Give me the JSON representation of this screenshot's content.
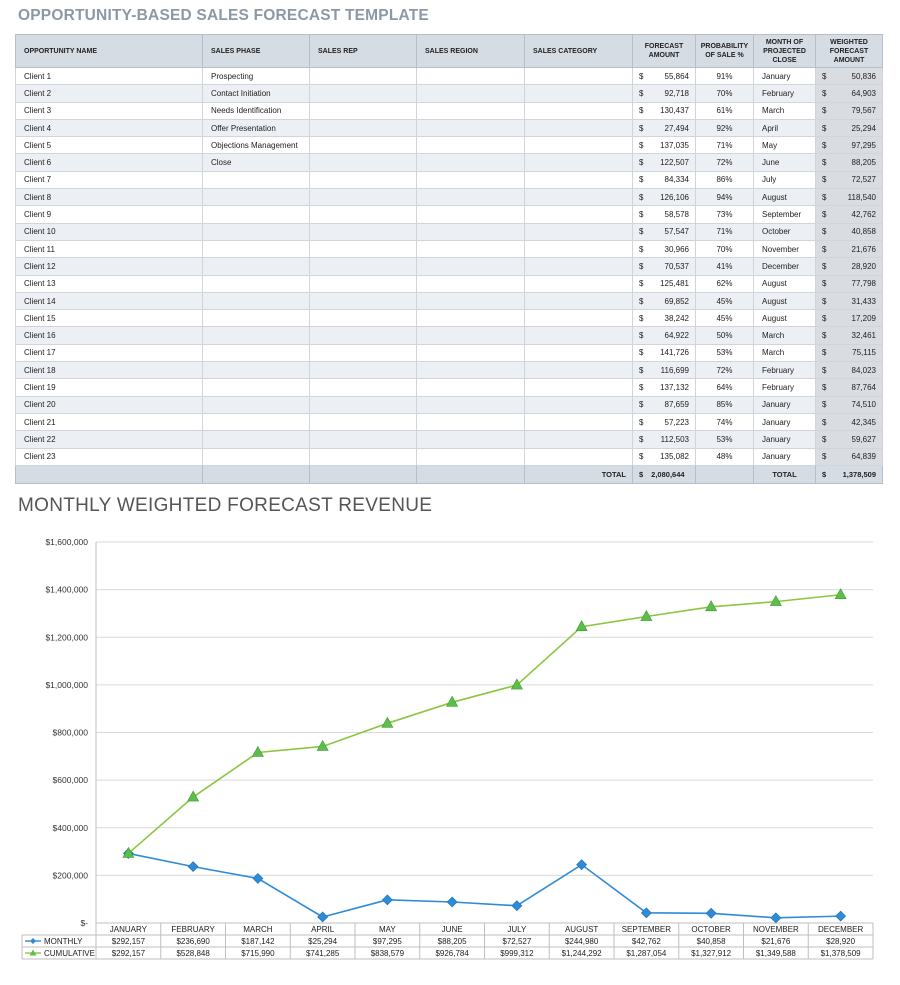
{
  "page_title": "OPPORTUNITY-BASED SALES FORECAST TEMPLATE",
  "table": {
    "headers": {
      "opportunity_name": "OPPORTUNITY NAME",
      "sales_phase": "SALES PHASE",
      "sales_rep": "SALES REP",
      "sales_region": "SALES REGION",
      "sales_category": "SALES CATEGORY",
      "forecast_amount": "FORECAST AMOUNT",
      "probability": "PROBABILITY OF SALE %",
      "month_close": "MONTH OF PROJECTED CLOSE",
      "weighted": "WEIGHTED FORECAST AMOUNT"
    },
    "currency": "$",
    "rows": [
      {
        "name": "Client 1",
        "phase": "Prospecting",
        "rep": "",
        "region": "",
        "category": "",
        "forecast": "55,864",
        "prob": "91%",
        "month": "January",
        "weighted": "50,836"
      },
      {
        "name": "Client 2",
        "phase": "Contact Initiation",
        "rep": "",
        "region": "",
        "category": "",
        "forecast": "92,718",
        "prob": "70%",
        "month": "February",
        "weighted": "64,903"
      },
      {
        "name": "Client 3",
        "phase": "Needs Identification",
        "rep": "",
        "region": "",
        "category": "",
        "forecast": "130,437",
        "prob": "61%",
        "month": "March",
        "weighted": "79,567"
      },
      {
        "name": "Client 4",
        "phase": "Offer Presentation",
        "rep": "",
        "region": "",
        "category": "",
        "forecast": "27,494",
        "prob": "92%",
        "month": "April",
        "weighted": "25,294"
      },
      {
        "name": "Client 5",
        "phase": "Objections Management",
        "rep": "",
        "region": "",
        "category": "",
        "forecast": "137,035",
        "prob": "71%",
        "month": "May",
        "weighted": "97,295"
      },
      {
        "name": "Client 6",
        "phase": "Close",
        "rep": "",
        "region": "",
        "category": "",
        "forecast": "122,507",
        "prob": "72%",
        "month": "June",
        "weighted": "88,205"
      },
      {
        "name": "Client 7",
        "phase": "",
        "rep": "",
        "region": "",
        "category": "",
        "forecast": "84,334",
        "prob": "86%",
        "month": "July",
        "weighted": "72,527"
      },
      {
        "name": "Client 8",
        "phase": "",
        "rep": "",
        "region": "",
        "category": "",
        "forecast": "126,106",
        "prob": "94%",
        "month": "August",
        "weighted": "118,540"
      },
      {
        "name": "Client 9",
        "phase": "",
        "rep": "",
        "region": "",
        "category": "",
        "forecast": "58,578",
        "prob": "73%",
        "month": "September",
        "weighted": "42,762"
      },
      {
        "name": "Client 10",
        "phase": "",
        "rep": "",
        "region": "",
        "category": "",
        "forecast": "57,547",
        "prob": "71%",
        "month": "October",
        "weighted": "40,858"
      },
      {
        "name": "Client 11",
        "phase": "",
        "rep": "",
        "region": "",
        "category": "",
        "forecast": "30,966",
        "prob": "70%",
        "month": "November",
        "weighted": "21,676"
      },
      {
        "name": "Client 12",
        "phase": "",
        "rep": "",
        "region": "",
        "category": "",
        "forecast": "70,537",
        "prob": "41%",
        "month": "December",
        "weighted": "28,920"
      },
      {
        "name": "Client 13",
        "phase": "",
        "rep": "",
        "region": "",
        "category": "",
        "forecast": "125,481",
        "prob": "62%",
        "month": "August",
        "weighted": "77,798"
      },
      {
        "name": "Client 14",
        "phase": "",
        "rep": "",
        "region": "",
        "category": "",
        "forecast": "69,852",
        "prob": "45%",
        "month": "August",
        "weighted": "31,433"
      },
      {
        "name": "Client 15",
        "phase": "",
        "rep": "",
        "region": "",
        "category": "",
        "forecast": "38,242",
        "prob": "45%",
        "month": "August",
        "weighted": "17,209"
      },
      {
        "name": "Client 16",
        "phase": "",
        "rep": "",
        "region": "",
        "category": "",
        "forecast": "64,922",
        "prob": "50%",
        "month": "March",
        "weighted": "32,461"
      },
      {
        "name": "Client 17",
        "phase": "",
        "rep": "",
        "region": "",
        "category": "",
        "forecast": "141,726",
        "prob": "53%",
        "month": "March",
        "weighted": "75,115"
      },
      {
        "name": "Client 18",
        "phase": "",
        "rep": "",
        "region": "",
        "category": "",
        "forecast": "116,699",
        "prob": "72%",
        "month": "February",
        "weighted": "84,023"
      },
      {
        "name": "Client 19",
        "phase": "",
        "rep": "",
        "region": "",
        "category": "",
        "forecast": "137,132",
        "prob": "64%",
        "month": "February",
        "weighted": "87,764"
      },
      {
        "name": "Client 20",
        "phase": "",
        "rep": "",
        "region": "",
        "category": "",
        "forecast": "87,659",
        "prob": "85%",
        "month": "January",
        "weighted": "74,510"
      },
      {
        "name": "Client 21",
        "phase": "",
        "rep": "",
        "region": "",
        "category": "",
        "forecast": "57,223",
        "prob": "74%",
        "month": "January",
        "weighted": "42,345"
      },
      {
        "name": "Client 22",
        "phase": "",
        "rep": "",
        "region": "",
        "category": "",
        "forecast": "112,503",
        "prob": "53%",
        "month": "January",
        "weighted": "59,627"
      },
      {
        "name": "Client 23",
        "phase": "",
        "rep": "",
        "region": "",
        "category": "",
        "forecast": "135,082",
        "prob": "48%",
        "month": "January",
        "weighted": "64,839"
      }
    ],
    "totals": {
      "label_forecast": "TOTAL",
      "forecast": "2,080,644",
      "label_weighted": "TOTAL",
      "weighted": "1,378,509"
    }
  },
  "chart_title": "MONTHLY WEIGHTED FORECAST REVENUE",
  "chart_data": {
    "type": "line",
    "title": "",
    "xlabel": "",
    "ylabel": "",
    "ylim": [
      0,
      1600000
    ],
    "yticks": [
      0,
      200000,
      400000,
      600000,
      800000,
      1000000,
      1200000,
      1400000,
      1600000
    ],
    "ytick_labels": [
      "$-",
      "$200,000",
      "$400,000",
      "$600,000",
      "$800,000",
      "$1,000,000",
      "$1,200,000",
      "$1,400,000",
      "$1,600,000"
    ],
    "grid": true,
    "categories": [
      "JANUARY",
      "FEBRUARY",
      "MARCH",
      "APRIL",
      "MAY",
      "JUNE",
      "JULY",
      "AUGUST",
      "SEPTEMBER",
      "OCTOBER",
      "NOVEMBER",
      "DECEMBER"
    ],
    "series": [
      {
        "name": "MONTHLY",
        "color": "#2e8bd8",
        "marker": "diamond",
        "values": [
          292157,
          236690,
          187142,
          25294,
          97295,
          88205,
          72527,
          244980,
          42762,
          40858,
          21676,
          28920
        ],
        "labels": [
          "$292,157",
          "$236,690",
          "$187,142",
          "$25,294",
          "$97,295",
          "$88,205",
          "$72,527",
          "$244,980",
          "$42,762",
          "$40,858",
          "$21,676",
          "$28,920"
        ]
      },
      {
        "name": "CUMULATIVE",
        "color": "#8cc63f",
        "marker": "triangle",
        "values": [
          292157,
          528848,
          715990,
          741285,
          838579,
          926784,
          999312,
          1244292,
          1287054,
          1327912,
          1349588,
          1378509
        ],
        "labels": [
          "$292,157",
          "$528,848",
          "$715,990",
          "$741,285",
          "$838,579",
          "$926,784",
          "$999,312",
          "$1,244,292",
          "$1,287,054",
          "$1,327,912",
          "$1,349,588",
          "$1,378,509"
        ]
      }
    ]
  }
}
